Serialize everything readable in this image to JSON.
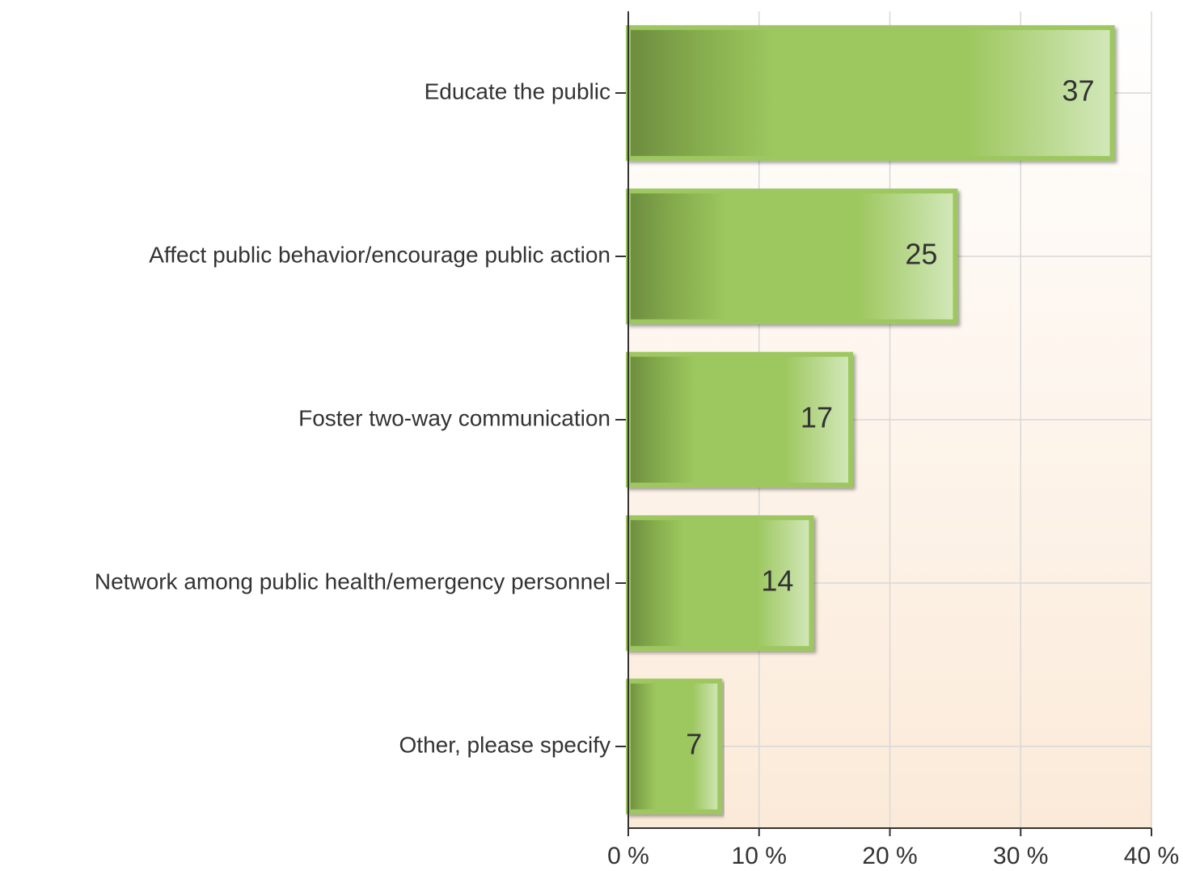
{
  "chart_data": {
    "type": "hbar",
    "categories": [
      "Educate the public",
      "Affect public behavior/encourage public action",
      "Foster two-way communication",
      "Network among public health/emergency personnel",
      "Other, please specify"
    ],
    "values": [
      37,
      25,
      17,
      14,
      7
    ],
    "color": "#9dc75e",
    "xlim": [
      0,
      40
    ],
    "xticks": [
      {
        "value": 0,
        "label": "0 %"
      },
      {
        "value": 10,
        "label": "10 %"
      },
      {
        "value": 20,
        "label": "20 %"
      },
      {
        "value": 30,
        "label": "30 %"
      },
      {
        "value": 40,
        "label": "40 %"
      }
    ],
    "grid": true
  }
}
